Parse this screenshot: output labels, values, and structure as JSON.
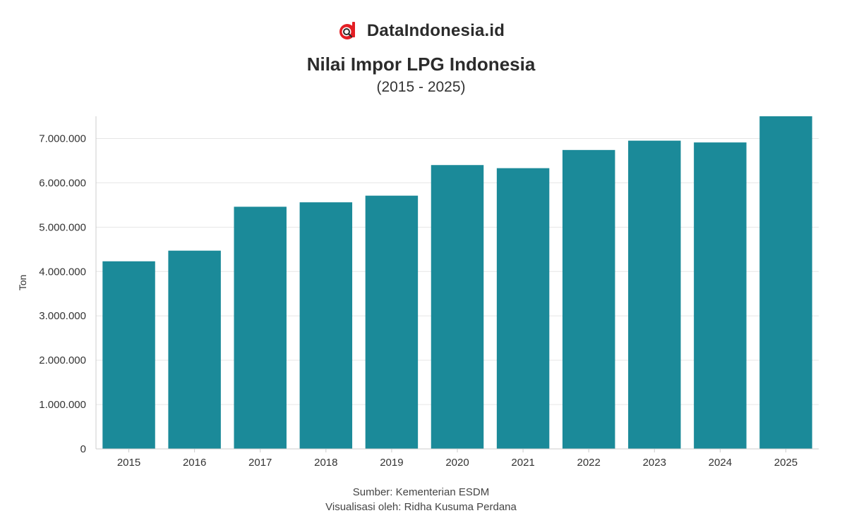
{
  "brand": {
    "name": "DataIndonesia.id",
    "logo_icon": "dataindonesia-logo-icon",
    "logo_colors": [
      "#e31e24",
      "#2b2b2b"
    ]
  },
  "header": {
    "title": "Nilai Impor LPG Indonesia",
    "subtitle": "(2015 - 2025)"
  },
  "footer": {
    "source": "Sumber: Kementerian ESDM",
    "credit": "Visualisasi oleh: Ridha Kusuma Perdana"
  },
  "colors": {
    "bar": "#1b8a99",
    "grid": "#e6e6e6",
    "axis": "#cccccc",
    "text": "#333333"
  },
  "chart_data": {
    "type": "bar",
    "categories": [
      "2015",
      "2016",
      "2017",
      "2018",
      "2019",
      "2020",
      "2021",
      "2022",
      "2023",
      "2024",
      "2025"
    ],
    "values": [
      4230000,
      4470000,
      5460000,
      5560000,
      5710000,
      6400000,
      6330000,
      6740000,
      6950000,
      6910000,
      7500000
    ],
    "ylabel": "Ton",
    "xlabel": "",
    "ylim": [
      0,
      7500000
    ],
    "yticks": [
      0,
      1000000,
      2000000,
      3000000,
      4000000,
      5000000,
      6000000,
      7000000
    ],
    "ytick_labels": [
      "0",
      "1.000.000",
      "2.000.000",
      "3.000.000",
      "4.000.000",
      "5.000.000",
      "6.000.000",
      "7.000.000"
    ],
    "grid": true,
    "legend": "none"
  }
}
